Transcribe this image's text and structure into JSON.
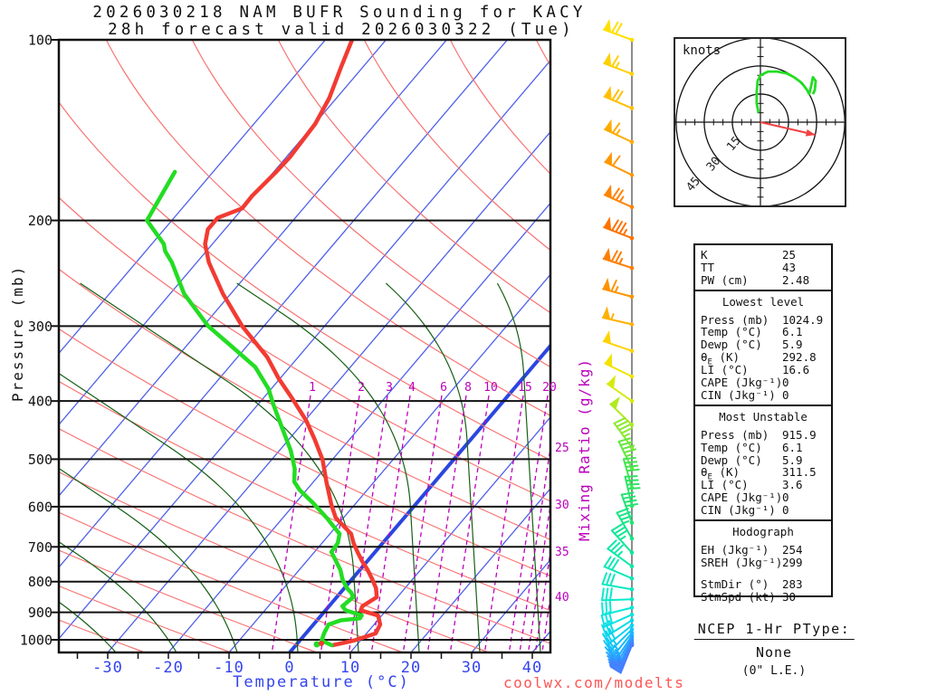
{
  "title": {
    "line1": "2026030218 NAM BUFR Sounding for KACY",
    "line2": "28h forecast valid 2026030322 (Tue)"
  },
  "watermark": "coolwx.com/modelts",
  "axes": {
    "pressure_label": "Pressure (mb)",
    "temp_label": "Temperature (°C)",
    "mixing_label": "Mixing Ratio (g/kg)",
    "pressure_ticks": [
      100,
      200,
      300,
      400,
      500,
      600,
      700,
      800,
      900,
      1000
    ],
    "temp_ticks": [
      -30,
      -20,
      -10,
      0,
      10,
      20,
      30,
      40
    ],
    "mixing_ratio_inline_labels": [
      1,
      2,
      3,
      4,
      6,
      8,
      10,
      15,
      20
    ],
    "mixing_ratio_right_labels": [
      25,
      30,
      35,
      40
    ]
  },
  "chart_data": {
    "type": "skewt-log-p-sounding",
    "title": "2026030218 NAM BUFR Sounding for KACY",
    "pressure_range_mb": [
      100,
      1050
    ],
    "temp_axis_range_c": [
      -38,
      43
    ],
    "grid": {
      "isotherm_step_c": 10,
      "isotherm_color": "#5060e8",
      "zero_isotherm_thick": true,
      "dry_adiabat_color": "#f87272",
      "moist_adiabat_color": "#156015",
      "mixing_ratio_color": "#bb00bb",
      "pressure_line_color": "#111111"
    },
    "series": [
      {
        "name": "temperature",
        "color": "#f23b32",
        "points": [
          [
            100,
            -75.6
          ],
          [
            111,
            -73.6
          ],
          [
            125,
            -71.2
          ],
          [
            138,
            -69.9
          ],
          [
            157,
            -69.4
          ],
          [
            166,
            -69.6
          ],
          [
            182,
            -70.2
          ],
          [
            191,
            -70.1
          ],
          [
            198,
            -72.8
          ],
          [
            207,
            -72.8
          ],
          [
            219,
            -71.2
          ],
          [
            235,
            -68.0
          ],
          [
            265,
            -61.3
          ],
          [
            300,
            -53.6
          ],
          [
            338,
            -45.1
          ],
          [
            367,
            -40.2
          ],
          [
            396,
            -35.2
          ],
          [
            431,
            -29.8
          ],
          [
            463,
            -25.8
          ],
          [
            501,
            -21.6
          ],
          [
            545,
            -17.9
          ],
          [
            596,
            -13.8
          ],
          [
            626,
            -11.3
          ],
          [
            666,
            -6.5
          ],
          [
            690,
            -4.8
          ],
          [
            714,
            -2.9
          ],
          [
            739,
            -0.9
          ],
          [
            765,
            1.3
          ],
          [
            792,
            3.3
          ],
          [
            820,
            5.2
          ],
          [
            849,
            6.6
          ],
          [
            879,
            5.5
          ],
          [
            893,
            5.8
          ],
          [
            911,
            9.4
          ],
          [
            943,
            11.0
          ],
          [
            976,
            11.5
          ],
          [
            1003,
            8.9
          ],
          [
            1021,
            6.1
          ]
        ]
      },
      {
        "name": "dewpoint",
        "color": "#23dd23",
        "points": [
          [
            166,
            -86.3
          ],
          [
            200,
            -84.1
          ],
          [
            219,
            -78.0
          ],
          [
            225,
            -76.8
          ],
          [
            235,
            -74.1
          ],
          [
            265,
            -67.7
          ],
          [
            300,
            -59.2
          ],
          [
            325,
            -52.3
          ],
          [
            351,
            -45.7
          ],
          [
            382,
            -40.4
          ],
          [
            405,
            -37.5
          ],
          [
            442,
            -32.9
          ],
          [
            484,
            -28.1
          ],
          [
            519,
            -24.9
          ],
          [
            545,
            -23.2
          ],
          [
            563,
            -21.1
          ],
          [
            590,
            -17.3
          ],
          [
            626,
            -12.8
          ],
          [
            666,
            -8.4
          ],
          [
            690,
            -7.4
          ],
          [
            714,
            -7.2
          ],
          [
            739,
            -5.2
          ],
          [
            765,
            -3.2
          ],
          [
            792,
            -1.6
          ],
          [
            820,
            0.4
          ],
          [
            835,
            1.8
          ],
          [
            849,
            2.7
          ],
          [
            879,
            2.2
          ],
          [
            893,
            3.3
          ],
          [
            911,
            6.7
          ],
          [
            921,
            6.8
          ],
          [
            928,
            3.9
          ],
          [
            943,
            2.5
          ],
          [
            976,
            3.0
          ],
          [
            1003,
            3.6
          ],
          [
            1021,
            5.9
          ]
        ]
      }
    ],
    "wind_barbs": [
      {
        "p": 100,
        "dir": 290,
        "spd": 70,
        "color": "#ffe000"
      },
      {
        "p": 114,
        "dir": 291,
        "spd": 65,
        "color": "#ffd000"
      },
      {
        "p": 130,
        "dir": 293,
        "spd": 70,
        "color": "#ffc000"
      },
      {
        "p": 148,
        "dir": 295,
        "spd": 65,
        "color": "#ffab00"
      },
      {
        "p": 168,
        "dir": 296,
        "spd": 60,
        "color": "#ff9700"
      },
      {
        "p": 190,
        "dir": 294,
        "spd": 75,
        "color": "#ff8300"
      },
      {
        "p": 214,
        "dir": 291,
        "spd": 85,
        "color": "#ff7200"
      },
      {
        "p": 240,
        "dir": 288,
        "spd": 75,
        "color": "#ff7e00"
      },
      {
        "p": 268,
        "dir": 285,
        "spd": 65,
        "color": "#ff9300"
      },
      {
        "p": 298,
        "dir": 283,
        "spd": 55,
        "color": "#ffb000"
      },
      {
        "p": 330,
        "dir": 289,
        "spd": 50,
        "color": "#ffd200"
      },
      {
        "p": 364,
        "dir": 296,
        "spd": 50,
        "color": "#f2e300"
      },
      {
        "p": 400,
        "dir": 305,
        "spd": 50,
        "color": "#d6ea10"
      },
      {
        "p": 438,
        "dir": 314,
        "spd": 50,
        "color": "#b2ea20"
      },
      {
        "p": 478,
        "dir": 324,
        "spd": 45,
        "color": "#8ce930"
      },
      {
        "p": 518,
        "dir": 334,
        "spd": 45,
        "color": "#66e640"
      },
      {
        "p": 558,
        "dir": 344,
        "spd": 40,
        "color": "#44e452"
      },
      {
        "p": 598,
        "dir": 347,
        "spd": 40,
        "color": "#2ee462"
      },
      {
        "p": 638,
        "dir": 340,
        "spd": 40,
        "color": "#22e474"
      },
      {
        "p": 678,
        "dir": 330,
        "spd": 35,
        "color": "#1ae586"
      },
      {
        "p": 716,
        "dir": 318,
        "spd": 35,
        "color": "#14e698"
      },
      {
        "p": 754,
        "dir": 306,
        "spd": 35,
        "color": "#10e7a8"
      },
      {
        "p": 790,
        "dir": 293,
        "spd": 30,
        "color": "#0ee8b6"
      },
      {
        "p": 824,
        "dir": 280,
        "spd": 30,
        "color": "#0ce9c2"
      },
      {
        "p": 856,
        "dir": 268,
        "spd": 30,
        "color": "#0ae9cc"
      },
      {
        "p": 884,
        "dir": 256,
        "spd": 30,
        "color": "#09e8d6"
      },
      {
        "p": 908,
        "dir": 246,
        "spd": 30,
        "color": "#08e3e0"
      },
      {
        "p": 928,
        "dir": 238,
        "spd": 30,
        "color": "#0adbe8"
      },
      {
        "p": 946,
        "dir": 231,
        "spd": 30,
        "color": "#0dd2f0"
      },
      {
        "p": 961,
        "dir": 225,
        "spd": 28,
        "color": "#12c6f6"
      },
      {
        "p": 974,
        "dir": 219,
        "spd": 27,
        "color": "#18bafb"
      },
      {
        "p": 985,
        "dir": 214,
        "spd": 27,
        "color": "#1fadff"
      },
      {
        "p": 994,
        "dir": 211,
        "spd": 26,
        "color": "#27a2ff"
      },
      {
        "p": 1002,
        "dir": 208,
        "spd": 26,
        "color": "#2f98ff"
      },
      {
        "p": 1009,
        "dir": 206,
        "spd": 25,
        "color": "#378fff"
      },
      {
        "p": 1014,
        "dir": 204,
        "spd": 25,
        "color": "#3e88ff"
      },
      {
        "p": 1018,
        "dir": 203,
        "spd": 25,
        "color": "#4482ff"
      },
      {
        "p": 1021,
        "dir": 202,
        "spd": 25,
        "color": "#497dff"
      }
    ],
    "hodograph": {
      "units_label": "knots",
      "rings_kt": [
        15,
        30,
        45
      ],
      "trace_color": "#23dd23",
      "storm_motion": {
        "dir_deg": 283,
        "spd_kt": 30,
        "color": "#f24040"
      },
      "trace_uv_kt": [
        [
          -1,
          5
        ],
        [
          -2,
          10
        ],
        [
          -2,
          16
        ],
        [
          -1.5,
          22
        ],
        [
          0,
          25
        ],
        [
          4,
          27
        ],
        [
          9,
          27
        ],
        [
          14,
          26
        ],
        [
          18,
          24
        ],
        [
          22,
          21
        ],
        [
          25,
          17
        ],
        [
          26,
          15
        ],
        [
          27,
          19
        ],
        [
          28,
          24
        ],
        [
          29.5,
          22
        ],
        [
          29,
          17
        ],
        [
          28,
          15
        ]
      ]
    }
  },
  "indices": {
    "sections": [
      {
        "header": "",
        "rows": [
          [
            "K",
            "25"
          ],
          [
            "TT",
            "43"
          ],
          [
            "PW (cm)",
            "2.48"
          ]
        ]
      },
      {
        "header": "Lowest level",
        "rows": [
          [
            "Press (mb)",
            "1024.9"
          ],
          [
            "Temp (°C)",
            "6.1"
          ],
          [
            "Dewp (°C)",
            "5.9"
          ],
          [
            "θ_E (K)",
            "292.8"
          ],
          [
            "LI (°C)",
            "16.6"
          ],
          [
            "CAPE (Jkg⁻¹)",
            "0"
          ],
          [
            "CIN (Jkg⁻¹)",
            "0"
          ]
        ]
      },
      {
        "header": "Most Unstable",
        "rows": [
          [
            "Press (mb)",
            "915.9"
          ],
          [
            "Temp (°C)",
            "6.1"
          ],
          [
            "Dewp (°C)",
            "5.9"
          ],
          [
            "θ_E (K)",
            "311.5"
          ],
          [
            "LI (°C)",
            "3.6"
          ],
          [
            "CAPE (Jkg⁻¹)",
            "0"
          ],
          [
            "CIN (Jkg⁻¹)",
            "0"
          ]
        ]
      },
      {
        "header": "Hodograph",
        "rows": [
          [
            "EH (Jkg⁻¹)",
            "254"
          ],
          [
            "SREH (Jkg⁻¹)",
            "299"
          ],
          [
            "GAP",
            ""
          ],
          [
            "StmDir (°)",
            "283"
          ],
          [
            "StmSpd (kt)",
            "30"
          ]
        ]
      }
    ]
  },
  "ptype": {
    "heading": "NCEP 1-Hr PType:",
    "value": "None",
    "detail": "(0\" L.E.)"
  }
}
